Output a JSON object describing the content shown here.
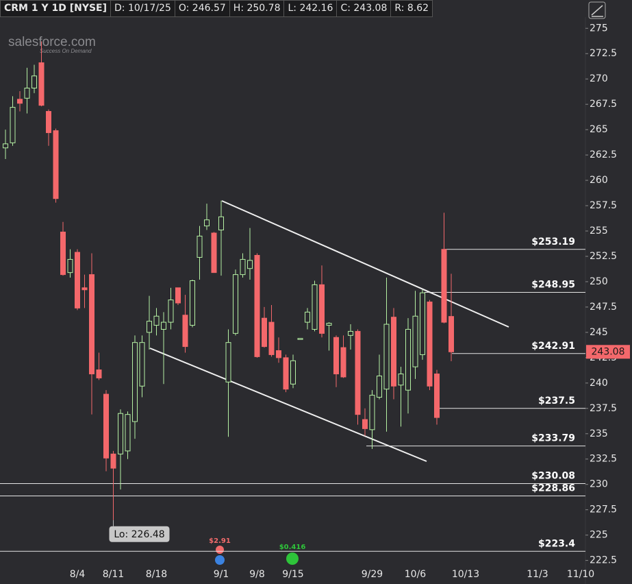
{
  "chart_data": {
    "type": "candlestick",
    "header": [
      "CRM 1 Y 1D [NYSE]",
      "D: 10/17/25",
      "O: 246.57",
      "H: 250.78",
      "L: 242.16",
      "C: 243.08",
      "R: 8.62"
    ],
    "logo": {
      "name": "salesforce.com",
      "tagline": "Success On Demand"
    },
    "up_color": "#b6f2a4",
    "down_color": "#f4686b",
    "categories": [
      null,
      null,
      null,
      null,
      null,
      null,
      null,
      null,
      null,
      null,
      "8/4",
      null,
      null,
      null,
      null,
      "8/11",
      null,
      null,
      null,
      null,
      null,
      "8/18",
      null,
      null,
      null,
      null,
      null,
      null,
      null,
      null,
      "9/1",
      null,
      null,
      null,
      null,
      "9/8",
      null,
      null,
      null,
      null,
      "9/15",
      null,
      null,
      null,
      null,
      null,
      null,
      null,
      null,
      null,
      null,
      "9/29",
      null,
      null,
      null,
      null,
      null,
      "10/6",
      null,
      null,
      null,
      null,
      null,
      null,
      "10/13",
      null,
      null,
      null,
      null,
      null,
      null,
      null,
      null,
      null,
      "11/3",
      null,
      null,
      null,
      null,
      null,
      "11/10"
    ],
    "open": [
      263.2,
      263.7,
      268.0,
      268.1,
      269.1,
      271.6,
      266.8,
      264.9,
      254.9,
      250.9,
      252.9,
      249.4,
      250.7,
      241.3,
      238.9,
      233.0,
      233.0,
      233.3,
      236.2,
      239.7,
      245.0,
      245.7,
      245.3,
      246.0,
      249.4,
      246.7,
      245.7,
      252.4,
      255.5,
      254.8,
      255.1,
      240.1,
      244.9,
      250.7,
      251.3,
      252.6,
      246.4,
      246.0,
      243.2,
      242.5,
      239.9,
      244.3,
      246.0,
      245.3,
      249.7,
      245.7,
      244.5,
      243.5,
      244.7,
      245.1,
      236.4,
      235.4,
      238.6,
      239.4,
      246.5,
      239.8,
      239.3,
      241.6,
      242.8,
      248.0,
      240.9,
      253.19,
      246.57,
      null,
      null,
      null,
      null,
      null,
      null,
      null,
      null,
      null,
      null,
      null,
      null,
      null,
      null,
      null,
      null,
      null,
      null
    ],
    "high": [
      265.0,
      268.3,
      268.8,
      271.1,
      271.4,
      273.7,
      267.0,
      265.1,
      255.9,
      253.2,
      253.2,
      250.7,
      252.8,
      243.0,
      239.3,
      233.3,
      237.4,
      237.2,
      244.7,
      244.7,
      248.6,
      247.4,
      247.0,
      249.4,
      249.4,
      248.7,
      250.2,
      255.5,
      257.7,
      254.9,
      258.0,
      245.3,
      251.2,
      252.8,
      255.3,
      252.8,
      247.5,
      247.7,
      244.5,
      242.8,
      242.8,
      244.4,
      247.4,
      250.1,
      251.6,
      246.0,
      244.7,
      244.7,
      245.8,
      245.3,
      237.5,
      239.3,
      242.8,
      250.4,
      247.4,
      241.6,
      246.4,
      249.1,
      249.2,
      248.2,
      241.3,
      256.8,
      250.78,
      null,
      null,
      null,
      null,
      null,
      null,
      null,
      null,
      null,
      null,
      null,
      null,
      null,
      null,
      null,
      null,
      null,
      null
    ],
    "low": [
      262.1,
      263.4,
      266.8,
      266.6,
      268.6,
      267.3,
      263.4,
      257.8,
      250.6,
      250.4,
      247.2,
      247.4,
      236.9,
      240.3,
      231.3,
      226.48,
      229.5,
      232.5,
      234.5,
      238.6,
      243.3,
      244.7,
      239.9,
      245.3,
      247.7,
      243.0,
      245.5,
      250.2,
      255.1,
      250.9,
      250.6,
      234.7,
      244.7,
      250.4,
      250.2,
      242.5,
      243.5,
      242.6,
      242.0,
      239.1,
      239.5,
      244.3,
      245.3,
      245.1,
      244.5,
      243.2,
      239.6,
      240.5,
      243.3,
      235.9,
      234.8,
      233.5,
      238.4,
      235.2,
      238.4,
      235.7,
      237.0,
      240.4,
      242.3,
      239.3,
      235.9,
      245.9,
      242.16,
      null,
      null,
      null,
      null,
      null,
      null,
      null,
      null,
      null,
      null,
      null,
      null,
      null,
      null,
      null,
      null,
      null,
      null
    ],
    "close": [
      263.6,
      267.2,
      267.6,
      269.1,
      270.3,
      267.4,
      264.7,
      258.2,
      250.7,
      252.2,
      247.4,
      249.2,
      240.9,
      240.5,
      232.6,
      231.6,
      237.0,
      236.9,
      244.0,
      244.0,
      246.1,
      246.6,
      246.0,
      248.2,
      247.9,
      243.6,
      250.1,
      254.5,
      256.1,
      250.9,
      256.4,
      244.0,
      250.7,
      252.2,
      252.1,
      242.6,
      243.6,
      242.8,
      242.5,
      239.4,
      242.2,
      244.4,
      247.0,
      249.7,
      244.9,
      245.9,
      240.9,
      240.6,
      245.1,
      236.9,
      235.5,
      238.8,
      240.7,
      245.8,
      239.7,
      240.9,
      245.3,
      246.6,
      248.9,
      239.7,
      236.6,
      246.0,
      243.08,
      null,
      null,
      null,
      null,
      null,
      null,
      null,
      null,
      null,
      null,
      null,
      null,
      null,
      null,
      null,
      null,
      null,
      null
    ],
    "ylim": [
      222,
      276.1
    ],
    "yticks": [
      222.5,
      225,
      227.5,
      230,
      232.5,
      235,
      237.5,
      240,
      242.5,
      245,
      247.5,
      250,
      252.5,
      255,
      257.5,
      260,
      262.5,
      265,
      267.5,
      270,
      272.5,
      275
    ],
    "levels": [
      {
        "value": 253.19,
        "label": "$253.19"
      },
      {
        "value": 248.95,
        "label": "$248.95"
      },
      {
        "value": 242.91,
        "label": "$242.91"
      },
      {
        "value": 237.5,
        "label": "$237.5"
      },
      {
        "value": 233.79,
        "label": "$233.79"
      },
      {
        "value": 230.08,
        "label": "$230.08"
      },
      {
        "value": 228.86,
        "label": "$228.86"
      },
      {
        "value": 223.4,
        "label": "$223.4"
      }
    ],
    "low_label": "Lo: 226.48",
    "last_price_label": "243.08",
    "events": [
      "$2.91",
      "$0.416"
    ]
  }
}
